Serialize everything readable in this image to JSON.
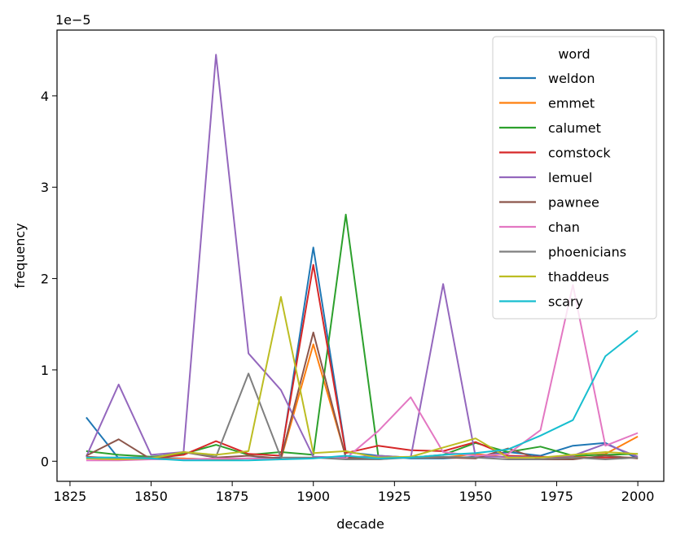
{
  "chart_data": {
    "type": "line",
    "title": "",
    "xlabel": "decade",
    "ylabel": "frequency",
    "offset_label": "1e−5",
    "xlim": [
      1821,
      2008
    ],
    "ylim": [
      -0.22,
      4.72
    ],
    "xticks": [
      1825,
      1850,
      1875,
      1900,
      1925,
      1950,
      1975,
      2000
    ],
    "yticks": [
      0,
      1,
      2,
      3,
      4
    ],
    "x": [
      1830,
      1840,
      1850,
      1860,
      1870,
      1880,
      1890,
      1900,
      1910,
      1920,
      1930,
      1940,
      1950,
      1960,
      1970,
      1980,
      1990,
      2000
    ],
    "legend": {
      "title": "word",
      "placement": "top-right"
    },
    "series": [
      {
        "name": "weldon",
        "color": "#1f77b4",
        "values": [
          0.48,
          0.03,
          0.04,
          0.03,
          0.02,
          0.03,
          0.04,
          2.34,
          0.1,
          0.06,
          0.03,
          0.03,
          0.05,
          0.1,
          0.06,
          0.17,
          0.2,
          0.03
        ]
      },
      {
        "name": "emmet",
        "color": "#ff7f0e",
        "values": [
          0.03,
          0.02,
          0.02,
          0.03,
          0.02,
          0.03,
          0.02,
          1.28,
          0.05,
          0.04,
          0.04,
          0.04,
          0.08,
          0.04,
          0.04,
          0.05,
          0.08,
          0.27
        ]
      },
      {
        "name": "calumet",
        "color": "#2ca02c",
        "values": [
          0.11,
          0.07,
          0.05,
          0.08,
          0.18,
          0.07,
          0.1,
          0.07,
          2.7,
          0.06,
          0.04,
          0.07,
          0.2,
          0.1,
          0.16,
          0.06,
          0.07,
          0.08
        ]
      },
      {
        "name": "comstock",
        "color": "#d62728",
        "values": [
          0.05,
          0.03,
          0.03,
          0.07,
          0.22,
          0.08,
          0.06,
          2.15,
          0.09,
          0.17,
          0.12,
          0.11,
          0.21,
          0.06,
          0.05,
          0.04,
          0.04,
          0.04
        ]
      },
      {
        "name": "lemuel",
        "color": "#9467bd",
        "values": [
          0.05,
          0.84,
          0.07,
          0.1,
          4.45,
          1.18,
          0.78,
          0.05,
          0.04,
          0.06,
          0.04,
          1.94,
          0.05,
          0.05,
          0.04,
          0.06,
          0.19,
          0.05
        ]
      },
      {
        "name": "pawnee",
        "color": "#8c564b",
        "values": [
          0.06,
          0.24,
          0.02,
          0.1,
          0.04,
          0.06,
          0.03,
          1.41,
          0.04,
          0.02,
          0.05,
          0.04,
          0.03,
          0.14,
          0.02,
          0.02,
          0.06,
          0.03
        ]
      },
      {
        "name": "chan",
        "color": "#e377c2",
        "values": [
          0.01,
          0.01,
          0.02,
          0.02,
          0.03,
          0.03,
          0.02,
          0.04,
          0.03,
          0.33,
          0.7,
          0.1,
          0.06,
          0.08,
          0.34,
          1.93,
          0.17,
          0.31
        ]
      },
      {
        "name": "phoenicians",
        "color": "#7f7f7f",
        "values": [
          0.04,
          0.04,
          0.04,
          0.1,
          0.05,
          0.96,
          0.04,
          0.04,
          0.02,
          0.02,
          0.04,
          0.05,
          0.04,
          0.02,
          0.02,
          0.04,
          0.02,
          0.04
        ]
      },
      {
        "name": "thaddeus",
        "color": "#bcbd22",
        "values": [
          0.03,
          0.02,
          0.03,
          0.1,
          0.07,
          0.11,
          1.8,
          0.09,
          0.11,
          0.04,
          0.05,
          0.15,
          0.25,
          0.04,
          0.04,
          0.07,
          0.1,
          0.08
        ]
      },
      {
        "name": "scary",
        "color": "#17becf",
        "values": [
          0.04,
          0.04,
          0.03,
          0.01,
          0.01,
          0.01,
          0.02,
          0.03,
          0.06,
          0.03,
          0.04,
          0.07,
          0.09,
          0.13,
          0.28,
          0.45,
          1.15,
          1.43
        ]
      }
    ]
  }
}
